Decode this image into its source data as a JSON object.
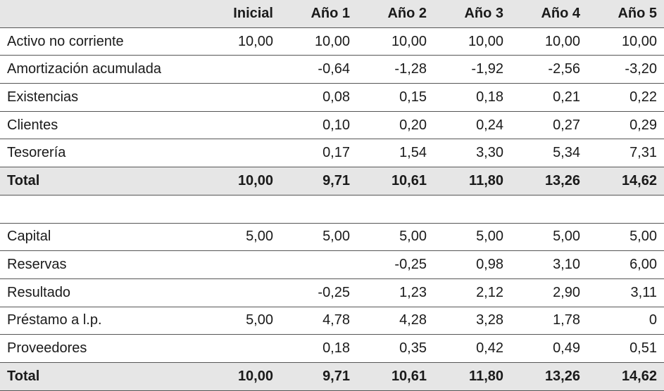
{
  "table": {
    "columns": [
      "Inicial",
      "Año 1",
      "Año 2",
      "Año 3",
      "Año 4",
      "Año 5"
    ],
    "sections": [
      {
        "rows": [
          {
            "label": "Activo no corriente",
            "values": [
              "10,00",
              "10,00",
              "10,00",
              "10,00",
              "10,00",
              "10,00"
            ]
          },
          {
            "label": "Amortización acumulada",
            "values": [
              null,
              "-0,64",
              "-1,28",
              "-1,92",
              "-2,56",
              "-3,20"
            ]
          },
          {
            "label": "Existencias",
            "values": [
              null,
              "0,08",
              "0,15",
              "0,18",
              "0,21",
              "0,22"
            ]
          },
          {
            "label": "Clientes",
            "values": [
              null,
              "0,10",
              "0,20",
              "0,24",
              "0,27",
              "0,29"
            ]
          },
          {
            "label": "Tesorería",
            "values": [
              null,
              "0,17",
              "1,54",
              "3,30",
              "5,34",
              "7,31"
            ]
          }
        ],
        "total": {
          "label": "Total",
          "values": [
            "10,00",
            "9,71",
            "10,61",
            "11,80",
            "13,26",
            "14,62"
          ]
        }
      },
      {
        "rows": [
          {
            "label": "Capital",
            "values": [
              "5,00",
              "5,00",
              "5,00",
              "5,00",
              "5,00",
              "5,00"
            ]
          },
          {
            "label": "Reservas",
            "values": [
              null,
              null,
              "-0,25",
              "0,98",
              "3,10",
              "6,00"
            ]
          },
          {
            "label": "Resultado",
            "values": [
              null,
              "-0,25",
              "1,23",
              "2,12",
              "2,90",
              "3,11"
            ]
          },
          {
            "label": "Préstamo a l.p.",
            "values": [
              "5,00",
              "4,78",
              "4,28",
              "3,28",
              "1,78",
              "0"
            ]
          },
          {
            "label": "Proveedores",
            "values": [
              null,
              "0,18",
              "0,35",
              "0,42",
              "0,49",
              "0,51"
            ]
          }
        ],
        "total": {
          "label": "Total",
          "values": [
            "10,00",
            "9,71",
            "10,61",
            "11,80",
            "13,26",
            "14,62"
          ]
        }
      }
    ]
  }
}
